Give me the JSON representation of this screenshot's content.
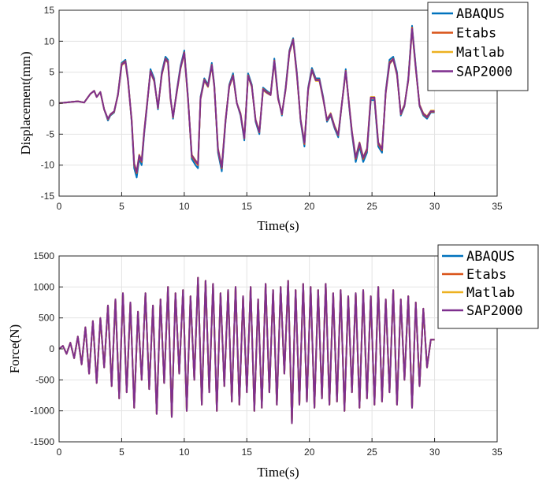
{
  "chart_data": [
    {
      "type": "line",
      "title": "",
      "xlabel": "Time(s)",
      "ylabel": "Displacement(mm)",
      "xlim": [
        0,
        35
      ],
      "ylim": [
        -15,
        15
      ],
      "xticks": [
        0,
        5,
        10,
        15,
        20,
        25,
        30,
        35
      ],
      "yticks": [
        -15,
        -10,
        -5,
        0,
        5,
        10,
        15
      ],
      "grid": true,
      "legend": "top-right",
      "x": [
        0,
        0.5,
        1,
        1.5,
        2,
        2.5,
        2.8,
        3,
        3.3,
        3.6,
        3.9,
        4.1,
        4.4,
        4.7,
        5,
        5.3,
        5.5,
        5.8,
        6,
        6.2,
        6.4,
        6.6,
        6.8,
        7,
        7.3,
        7.6,
        7.9,
        8.2,
        8.5,
        8.7,
        8.9,
        9.1,
        9.4,
        9.7,
        10,
        10.3,
        10.6,
        10.9,
        11.1,
        11.3,
        11.6,
        11.9,
        12.2,
        12.4,
        12.7,
        13,
        13.3,
        13.6,
        13.9,
        14.2,
        14.5,
        14.8,
        15.1,
        15.4,
        15.7,
        16,
        16.3,
        16.6,
        16.9,
        17.2,
        17.5,
        17.8,
        18.1,
        18.4,
        18.7,
        19,
        19.3,
        19.6,
        19.9,
        20.2,
        20.5,
        20.8,
        21.1,
        21.4,
        21.7,
        22,
        22.3,
        22.6,
        22.9,
        23.2,
        23.4,
        23.7,
        24,
        24.3,
        24.6,
        24.9,
        25.2,
        25.5,
        25.8,
        26.1,
        26.4,
        26.7,
        27,
        27.3,
        27.6,
        27.9,
        28.2,
        28.5,
        28.8,
        29.1,
        29.4,
        29.7,
        30
      ],
      "series": [
        {
          "name": "ABAQUS",
          "color": "#0072BD",
          "values": [
            0,
            0.1,
            0.2,
            0.3,
            0.1,
            1.5,
            2,
            1,
            1.8,
            -1,
            -2.8,
            -2,
            -1.5,
            1.5,
            6.5,
            7,
            4,
            -3,
            -10.5,
            -12,
            -9,
            -10,
            -5,
            -1,
            5.5,
            4,
            -1,
            5,
            7.5,
            7,
            1,
            -2.5,
            2,
            6,
            8.5,
            1,
            -9,
            -10,
            -10.5,
            1,
            4,
            3,
            6.5,
            3,
            -8,
            -11,
            -3,
            3,
            4.8,
            0,
            -2,
            -6,
            4.8,
            3,
            -3,
            -5,
            2.5,
            2,
            1.5,
            7.2,
            1,
            -2,
            2.5,
            8.5,
            10.5,
            5,
            -3,
            -7,
            2.5,
            5.7,
            4,
            4,
            1,
            -3,
            -2,
            -4,
            -5.5,
            0,
            5.5,
            -1,
            -5,
            -9.5,
            -7,
            -9.5,
            -8,
            0.5,
            0.5,
            -7,
            -8,
            2,
            7,
            7.5,
            5,
            -2,
            -0.5,
            4,
            12.5,
            6,
            -0.5,
            -2,
            -2.5,
            -1.5,
            -1.5
          ]
        },
        {
          "name": "Etabs",
          "color": "#D95319",
          "values": [
            0,
            0.1,
            0.2,
            0.3,
            0.1,
            1.5,
            2,
            1,
            1.8,
            -1,
            -2.6,
            -1.9,
            -1.4,
            1.4,
            6.3,
            6.8,
            3.8,
            -2.8,
            -10,
            -11.3,
            -8.6,
            -9.5,
            -4.7,
            -0.8,
            5.2,
            3.7,
            -0.8,
            4.7,
            7.2,
            6.7,
            0.8,
            -2.3,
            1.8,
            5.7,
            8.2,
            0.8,
            -8.6,
            -9.5,
            -10,
            0.8,
            3.8,
            2.8,
            6.2,
            2.8,
            -7.6,
            -10.5,
            -2.8,
            2.8,
            4.5,
            0,
            -1.8,
            -5.7,
            4.5,
            2.8,
            -2.8,
            -4.7,
            2.3,
            1.8,
            1.4,
            6.9,
            0.8,
            -1.8,
            2.3,
            8.3,
            10.3,
            4.7,
            -2.8,
            -6.6,
            2.3,
            5.4,
            3.8,
            3.8,
            0.8,
            -2.8,
            -1.8,
            -3.8,
            -5.2,
            0,
            5.2,
            -0.8,
            -4.7,
            -9,
            -6.6,
            -9,
            -7.6,
            0.8,
            0.8,
            -6.6,
            -7.6,
            1.8,
            6.6,
            7.2,
            4.7,
            -1.8,
            -0.4,
            3.8,
            12.2,
            5.7,
            -0.4,
            -1.8,
            -2.3,
            -1.4,
            -1.4
          ]
        },
        {
          "name": "Matlab",
          "color": "#EDB120",
          "values": [
            0,
            0.1,
            0.2,
            0.3,
            0.1,
            1.5,
            2,
            1,
            1.8,
            -1,
            -2.5,
            -1.8,
            -1.3,
            1.3,
            6.1,
            6.6,
            3.6,
            -2.6,
            -9.7,
            -11,
            -8.3,
            -9.2,
            -4.5,
            -0.6,
            5,
            3.5,
            -0.6,
            4.5,
            7,
            6.5,
            0.6,
            -2.1,
            1.6,
            5.5,
            8,
            0.6,
            -8.3,
            -9.2,
            -9.7,
            0.6,
            3.6,
            2.6,
            6,
            2.6,
            -7.3,
            -10.2,
            -2.6,
            2.6,
            4.3,
            0,
            -1.6,
            -5.5,
            4.3,
            2.6,
            -2.6,
            -4.5,
            2.1,
            1.6,
            1.3,
            6.7,
            0.6,
            -1.6,
            2.1,
            8.1,
            10.1,
            4.5,
            -2.6,
            -6.3,
            2.1,
            5.2,
            3.6,
            3.6,
            0.6,
            -2.6,
            -1.6,
            -3.6,
            -5,
            0,
            5,
            -0.6,
            -4.5,
            -8.7,
            -6.3,
            -8.7,
            -7.3,
            1,
            1,
            -6.3,
            -7.3,
            1.6,
            6.3,
            7,
            4.5,
            -1.6,
            -0.2,
            3.6,
            11.9,
            5.5,
            -0.2,
            -1.6,
            -2.1,
            -1.2,
            -1.2
          ]
        },
        {
          "name": "SAP2000",
          "color": "#7E2F8E",
          "values": [
            0,
            0.1,
            0.2,
            0.3,
            0.1,
            1.5,
            2,
            1,
            1.8,
            -1,
            -2.5,
            -1.8,
            -1.3,
            1.3,
            6.2,
            6.7,
            3.7,
            -2.7,
            -9.8,
            -11.1,
            -8.4,
            -9.3,
            -4.6,
            -0.7,
            5.1,
            3.6,
            -0.7,
            4.6,
            7.1,
            6.6,
            0.7,
            -2.2,
            1.7,
            5.6,
            8.1,
            0.7,
            -8.4,
            -9.3,
            -9.8,
            0.7,
            3.7,
            2.7,
            6.1,
            2.7,
            -7.4,
            -10.3,
            -2.7,
            2.7,
            4.4,
            0,
            -1.7,
            -5.6,
            4.4,
            2.7,
            -2.7,
            -4.6,
            2.2,
            1.7,
            1.3,
            6.8,
            0.7,
            -1.7,
            2.2,
            8.2,
            10.2,
            4.6,
            -2.7,
            -6.4,
            2.2,
            5.3,
            3.7,
            3.7,
            0.7,
            -2.7,
            -1.7,
            -3.7,
            -5.1,
            0,
            5.1,
            -0.7,
            -4.6,
            -8.8,
            -6.4,
            -8.8,
            -7.4,
            0.9,
            0.9,
            -6.4,
            -7.4,
            1.7,
            6.4,
            7.1,
            4.6,
            -1.7,
            -0.3,
            3.7,
            12,
            5.6,
            -0.3,
            -1.7,
            -2.2,
            -1.3,
            -1.3
          ]
        }
      ]
    },
    {
      "type": "line",
      "title": "",
      "xlabel": "Time(s)",
      "ylabel": "Force(N)",
      "xlim": [
        0,
        35
      ],
      "ylim": [
        -1500,
        1500
      ],
      "xticks": [
        0,
        5,
        10,
        15,
        20,
        25,
        30,
        35
      ],
      "yticks": [
        -1500,
        -1000,
        -500,
        0,
        500,
        1000,
        1500
      ],
      "grid": true,
      "legend": "top-right",
      "x": [
        0,
        0.3,
        0.6,
        0.9,
        1.2,
        1.5,
        1.8,
        2.1,
        2.4,
        2.7,
        3,
        3.3,
        3.6,
        3.9,
        4.2,
        4.5,
        4.8,
        5.1,
        5.4,
        5.7,
        6,
        6.3,
        6.6,
        6.9,
        7.2,
        7.5,
        7.8,
        8.1,
        8.4,
        8.7,
        9,
        9.3,
        9.6,
        9.9,
        10.2,
        10.5,
        10.8,
        11.1,
        11.4,
        11.7,
        12,
        12.3,
        12.6,
        12.9,
        13.2,
        13.5,
        13.8,
        14.1,
        14.4,
        14.7,
        15,
        15.3,
        15.6,
        15.9,
        16.2,
        16.5,
        16.8,
        17.1,
        17.4,
        17.7,
        18,
        18.3,
        18.6,
        18.9,
        19.2,
        19.5,
        19.8,
        20.1,
        20.4,
        20.7,
        21,
        21.3,
        21.6,
        21.9,
        22.2,
        22.5,
        22.8,
        23.1,
        23.4,
        23.7,
        24,
        24.3,
        24.6,
        24.9,
        25.2,
        25.5,
        25.8,
        26.1,
        26.4,
        26.7,
        27,
        27.3,
        27.6,
        27.9,
        28.2,
        28.5,
        28.8,
        29.1,
        29.4,
        29.7,
        30
      ],
      "series": [
        {
          "name": "ABAQUS",
          "color": "#0072BD",
          "values": [
            0,
            50,
            -80,
            100,
            -150,
            200,
            -250,
            350,
            -400,
            450,
            -550,
            500,
            -300,
            700,
            -600,
            800,
            -800,
            900,
            -700,
            750,
            -950,
            600,
            -500,
            900,
            -650,
            700,
            -1050,
            800,
            -550,
            1000,
            -1100,
            900,
            -400,
            950,
            -1000,
            850,
            -500,
            1150,
            -900,
            1100,
            -700,
            1050,
            -1000,
            900,
            -600,
            950,
            -850,
            1000,
            -900,
            850,
            -700,
            1000,
            -1000,
            800,
            -950,
            1050,
            -700,
            950,
            -900,
            1000,
            -400,
            1100,
            -1200,
            950,
            -900,
            1050,
            -850,
            1000,
            -950,
            950,
            -800,
            1050,
            -900,
            900,
            -850,
            950,
            -1000,
            850,
            -700,
            900,
            -950,
            950,
            -800,
            850,
            -900,
            1000,
            -850,
            800,
            -700,
            950,
            -900,
            800,
            -500,
            850,
            -950,
            750,
            -600,
            650,
            -300,
            150,
            150
          ]
        },
        {
          "name": "Etabs",
          "color": "#D95319",
          "values": [
            0,
            50,
            -80,
            100,
            -150,
            200,
            -250,
            350,
            -400,
            450,
            -550,
            500,
            -300,
            700,
            -600,
            800,
            -800,
            900,
            -700,
            750,
            -950,
            600,
            -500,
            900,
            -650,
            700,
            -1050,
            800,
            -550,
            1000,
            -1100,
            900,
            -400,
            950,
            -1000,
            850,
            -500,
            1150,
            -900,
            1100,
            -700,
            1050,
            -1000,
            900,
            -600,
            950,
            -850,
            1000,
            -900,
            850,
            -700,
            1000,
            -1000,
            800,
            -950,
            1050,
            -700,
            950,
            -900,
            1000,
            -400,
            1100,
            -1200,
            950,
            -900,
            1050,
            -850,
            1000,
            -950,
            950,
            -800,
            1050,
            -900,
            900,
            -850,
            950,
            -1000,
            850,
            -700,
            900,
            -950,
            950,
            -800,
            850,
            -900,
            1000,
            -850,
            800,
            -700,
            950,
            -900,
            800,
            -500,
            850,
            -950,
            750,
            -600,
            650,
            -300,
            150,
            150
          ]
        },
        {
          "name": "Matlab",
          "color": "#EDB120",
          "values": [
            0,
            50,
            -80,
            100,
            -150,
            200,
            -250,
            350,
            -400,
            450,
            -550,
            500,
            -300,
            700,
            -600,
            800,
            -800,
            900,
            -700,
            750,
            -950,
            600,
            -500,
            900,
            -650,
            700,
            -1050,
            800,
            -550,
            1000,
            -1100,
            900,
            -400,
            950,
            -1000,
            850,
            -500,
            1150,
            -900,
            1100,
            -700,
            1050,
            -1000,
            900,
            -600,
            950,
            -850,
            1000,
            -900,
            850,
            -700,
            1000,
            -1000,
            800,
            -950,
            1050,
            -700,
            950,
            -900,
            1000,
            -400,
            1100,
            -1200,
            950,
            -900,
            1050,
            -850,
            1000,
            -950,
            950,
            -800,
            1050,
            -900,
            900,
            -850,
            950,
            -1000,
            850,
            -700,
            900,
            -950,
            950,
            -800,
            850,
            -900,
            1000,
            -850,
            800,
            -700,
            950,
            -900,
            800,
            -500,
            850,
            -950,
            750,
            -600,
            650,
            -300,
            150,
            150
          ]
        },
        {
          "name": "SAP2000",
          "color": "#7E2F8E",
          "values": [
            0,
            50,
            -80,
            100,
            -150,
            200,
            -250,
            350,
            -400,
            450,
            -550,
            500,
            -300,
            700,
            -600,
            800,
            -800,
            900,
            -700,
            750,
            -950,
            600,
            -500,
            900,
            -650,
            700,
            -1050,
            800,
            -550,
            1000,
            -1100,
            900,
            -400,
            950,
            -1000,
            850,
            -500,
            1150,
            -900,
            1100,
            -700,
            1050,
            -1000,
            900,
            -600,
            950,
            -850,
            1000,
            -900,
            850,
            -700,
            1000,
            -1000,
            800,
            -950,
            1050,
            -700,
            950,
            -900,
            1000,
            -400,
            1100,
            -1200,
            950,
            -900,
            1050,
            -850,
            1000,
            -950,
            950,
            -800,
            1050,
            -900,
            900,
            -850,
            950,
            -1000,
            850,
            -700,
            900,
            -950,
            950,
            -800,
            850,
            -900,
            1000,
            -850,
            800,
            -700,
            950,
            -900,
            800,
            -500,
            850,
            -950,
            750,
            -600,
            650,
            -300,
            150,
            150
          ]
        }
      ]
    }
  ]
}
